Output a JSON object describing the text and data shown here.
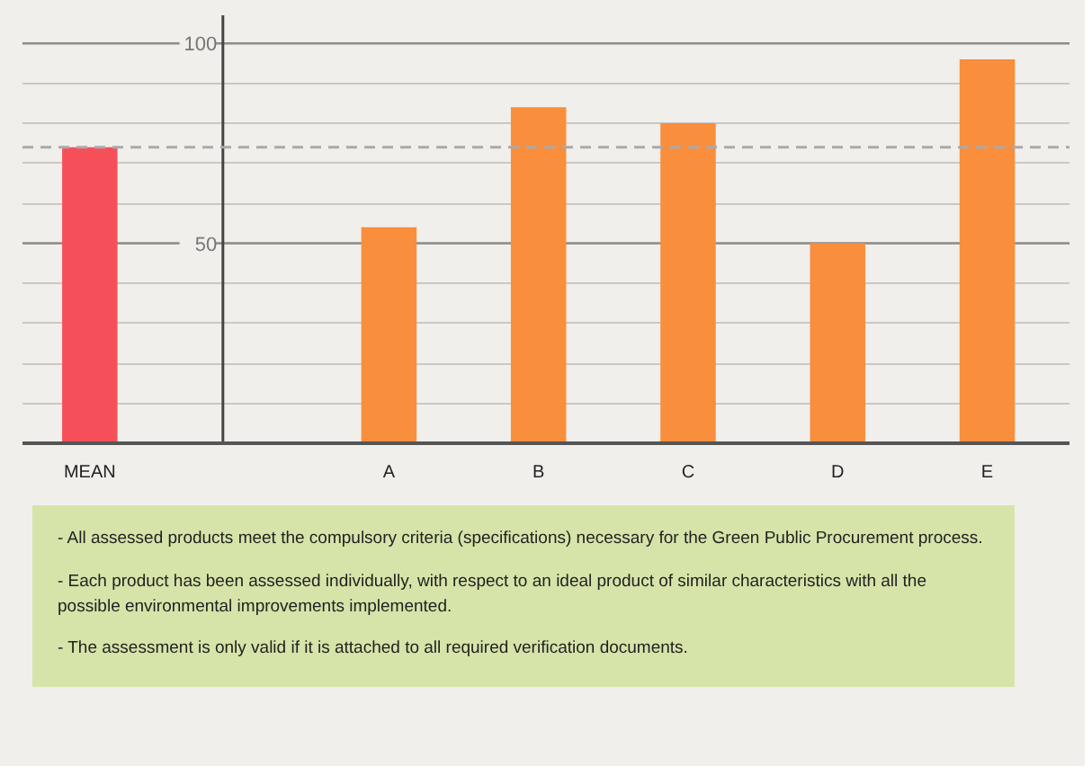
{
  "chart_data": {
    "type": "bar",
    "categories": [
      "MEAN",
      null,
      "A",
      "B",
      "C",
      "D",
      "E"
    ],
    "values": [
      74,
      null,
      54,
      84,
      80,
      50,
      96
    ],
    "colors": [
      "#f5505a",
      null,
      "#f98e3c",
      "#f98e3c",
      "#f98e3c",
      "#f98e3c",
      "#f98e3c"
    ],
    "ylim": [
      0,
      107
    ],
    "yticks": [
      {
        "value": 10,
        "label": null
      },
      {
        "value": 20,
        "label": null
      },
      {
        "value": 30,
        "label": null
      },
      {
        "value": 40,
        "label": null
      },
      50,
      {
        "value": 60,
        "label": null
      },
      {
        "value": 70,
        "label": null
      },
      {
        "value": 80,
        "label": null
      },
      {
        "value": 90,
        "label": null
      },
      100
    ],
    "grid": "y",
    "ref_lines": [
      {
        "axis": "y",
        "value": 74,
        "color": "#aaaaaa",
        "line_style": "dashed"
      }
    ],
    "annotations": [
      "- All assessed products meet the compulsory criteria (specifications) necessary for the Green Public Procurement process.",
      "- Each product has been assessed individually, with respect to an ideal product of similar characteristics with all the possible environmental improvements implemented.",
      "- The assessment is only valid if it is attached to all required verification documents."
    ]
  }
}
